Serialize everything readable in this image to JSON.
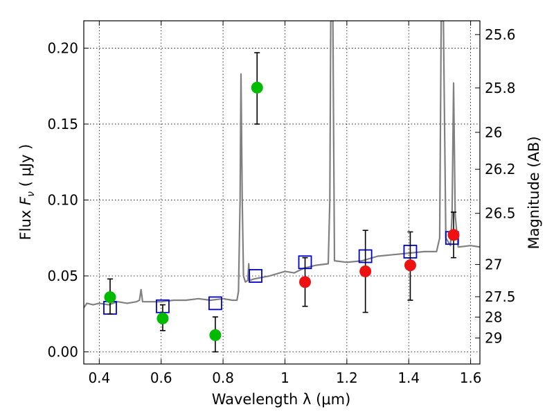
{
  "chart_data": {
    "type": "scatter",
    "title": "",
    "xlabel": "Wavelength  λ (μm)",
    "ylabel": "Flux  F_ν  ( μJy )",
    "ylabel_parts": {
      "prefix": "Flux  ",
      "symbol": "F",
      "subscript": "ν",
      "suffix": "  ( μJy )"
    },
    "y2label": "Magnitude (AB)",
    "xlim": [
      0.35,
      1.63
    ],
    "ylim": [
      -0.008,
      0.218
    ],
    "grid": true,
    "x_ticks": [
      {
        "value": 0.4,
        "label": "0.4"
      },
      {
        "value": 0.6,
        "label": "0.6"
      },
      {
        "value": 0.8,
        "label": "0.8"
      },
      {
        "value": 1.0,
        "label": "1"
      },
      {
        "value": 1.2,
        "label": "1.2"
      },
      {
        "value": 1.4,
        "label": "1.4"
      },
      {
        "value": 1.6,
        "label": "1.6"
      }
    ],
    "y_ticks": [
      {
        "value": 0.0,
        "label": "0.00"
      },
      {
        "value": 0.05,
        "label": "0.05"
      },
      {
        "value": 0.1,
        "label": "0.10"
      },
      {
        "value": 0.15,
        "label": "0.15"
      },
      {
        "value": 0.2,
        "label": "0.20"
      }
    ],
    "y2_ticks": [
      {
        "value": 25.6,
        "label": "25.6"
      },
      {
        "value": 25.8,
        "label": "25.8"
      },
      {
        "value": 26.0,
        "label": "26"
      },
      {
        "value": 26.2,
        "label": "26.2"
      },
      {
        "value": 26.5,
        "label": "26.5"
      },
      {
        "value": 27.0,
        "label": "27"
      },
      {
        "value": 27.5,
        "label": "27.5"
      },
      {
        "value": 28.0,
        "label": "28"
      },
      {
        "value": 29.0,
        "label": "29"
      }
    ],
    "series": [
      {
        "marker": "line",
        "color": "#808080",
        "points": [
          [
            0.35,
            0.029
          ],
          [
            0.36,
            0.032
          ],
          [
            0.38,
            0.031
          ],
          [
            0.4,
            0.032
          ],
          [
            0.43,
            0.031
          ],
          [
            0.46,
            0.033
          ],
          [
            0.49,
            0.032
          ],
          [
            0.52,
            0.033
          ],
          [
            0.53,
            0.034
          ],
          [
            0.535,
            0.041
          ],
          [
            0.54,
            0.033
          ],
          [
            0.56,
            0.033
          ],
          [
            0.6,
            0.033
          ],
          [
            0.64,
            0.034
          ],
          [
            0.68,
            0.034
          ],
          [
            0.72,
            0.035
          ],
          [
            0.76,
            0.034
          ],
          [
            0.8,
            0.035
          ],
          [
            0.83,
            0.034
          ],
          [
            0.845,
            0.034
          ],
          [
            0.85,
            0.04
          ],
          [
            0.855,
            0.1
          ],
          [
            0.858,
            0.183
          ],
          [
            0.862,
            0.1
          ],
          [
            0.866,
            0.05
          ],
          [
            0.872,
            0.046
          ],
          [
            0.88,
            0.047
          ],
          [
            0.883,
            0.058
          ],
          [
            0.886,
            0.047
          ],
          [
            0.9,
            0.048
          ],
          [
            0.95,
            0.05
          ],
          [
            1.0,
            0.053
          ],
          [
            1.03,
            0.052
          ],
          [
            1.06,
            0.055
          ],
          [
            1.1,
            0.057
          ],
          [
            1.14,
            0.058
          ],
          [
            1.145,
            0.1
          ],
          [
            1.148,
            0.218
          ],
          [
            1.155,
            0.218
          ],
          [
            1.16,
            0.06
          ],
          [
            1.2,
            0.059
          ],
          [
            1.25,
            0.06
          ],
          [
            1.3,
            0.063
          ],
          [
            1.35,
            0.064
          ],
          [
            1.4,
            0.065
          ],
          [
            1.45,
            0.066
          ],
          [
            1.49,
            0.066
          ],
          [
            1.5,
            0.075
          ],
          [
            1.505,
            0.218
          ],
          [
            1.512,
            0.218
          ],
          [
            1.52,
            0.075
          ],
          [
            1.535,
            0.07
          ],
          [
            1.54,
            0.09
          ],
          [
            1.545,
            0.177
          ],
          [
            1.55,
            0.09
          ],
          [
            1.56,
            0.069
          ],
          [
            1.6,
            0.07
          ],
          [
            1.63,
            0.069
          ]
        ]
      },
      {
        "marker": "square",
        "color": "#0000cc",
        "points": [
          [
            0.435,
            0.029
          ],
          [
            0.605,
            0.03
          ],
          [
            0.775,
            0.032
          ],
          [
            0.905,
            0.05
          ],
          [
            1.065,
            0.059
          ],
          [
            1.26,
            0.063
          ],
          [
            1.405,
            0.066
          ],
          [
            1.54,
            0.075
          ]
        ]
      },
      {
        "marker": "circle",
        "color": "#00bb00",
        "points": [
          {
            "x": 0.435,
            "y": 0.036,
            "ylo": 0.025,
            "yhi": 0.048
          },
          {
            "x": 0.605,
            "y": 0.022,
            "ylo": 0.014,
            "yhi": 0.031
          },
          {
            "x": 0.775,
            "y": 0.011,
            "ylo": 0.0,
            "yhi": 0.023
          },
          {
            "x": 0.91,
            "y": 0.174,
            "ylo": 0.15,
            "yhi": 0.197
          }
        ]
      },
      {
        "marker": "circle",
        "color": "#ee1111",
        "points": [
          {
            "x": 1.065,
            "y": 0.046,
            "ylo": 0.03,
            "yhi": 0.062
          },
          {
            "x": 1.26,
            "y": 0.053,
            "ylo": 0.026,
            "yhi": 0.08
          },
          {
            "x": 1.405,
            "y": 0.057,
            "ylo": 0.034,
            "yhi": 0.079
          },
          {
            "x": 1.545,
            "y": 0.077,
            "ylo": 0.062,
            "yhi": 0.092
          }
        ]
      }
    ]
  }
}
